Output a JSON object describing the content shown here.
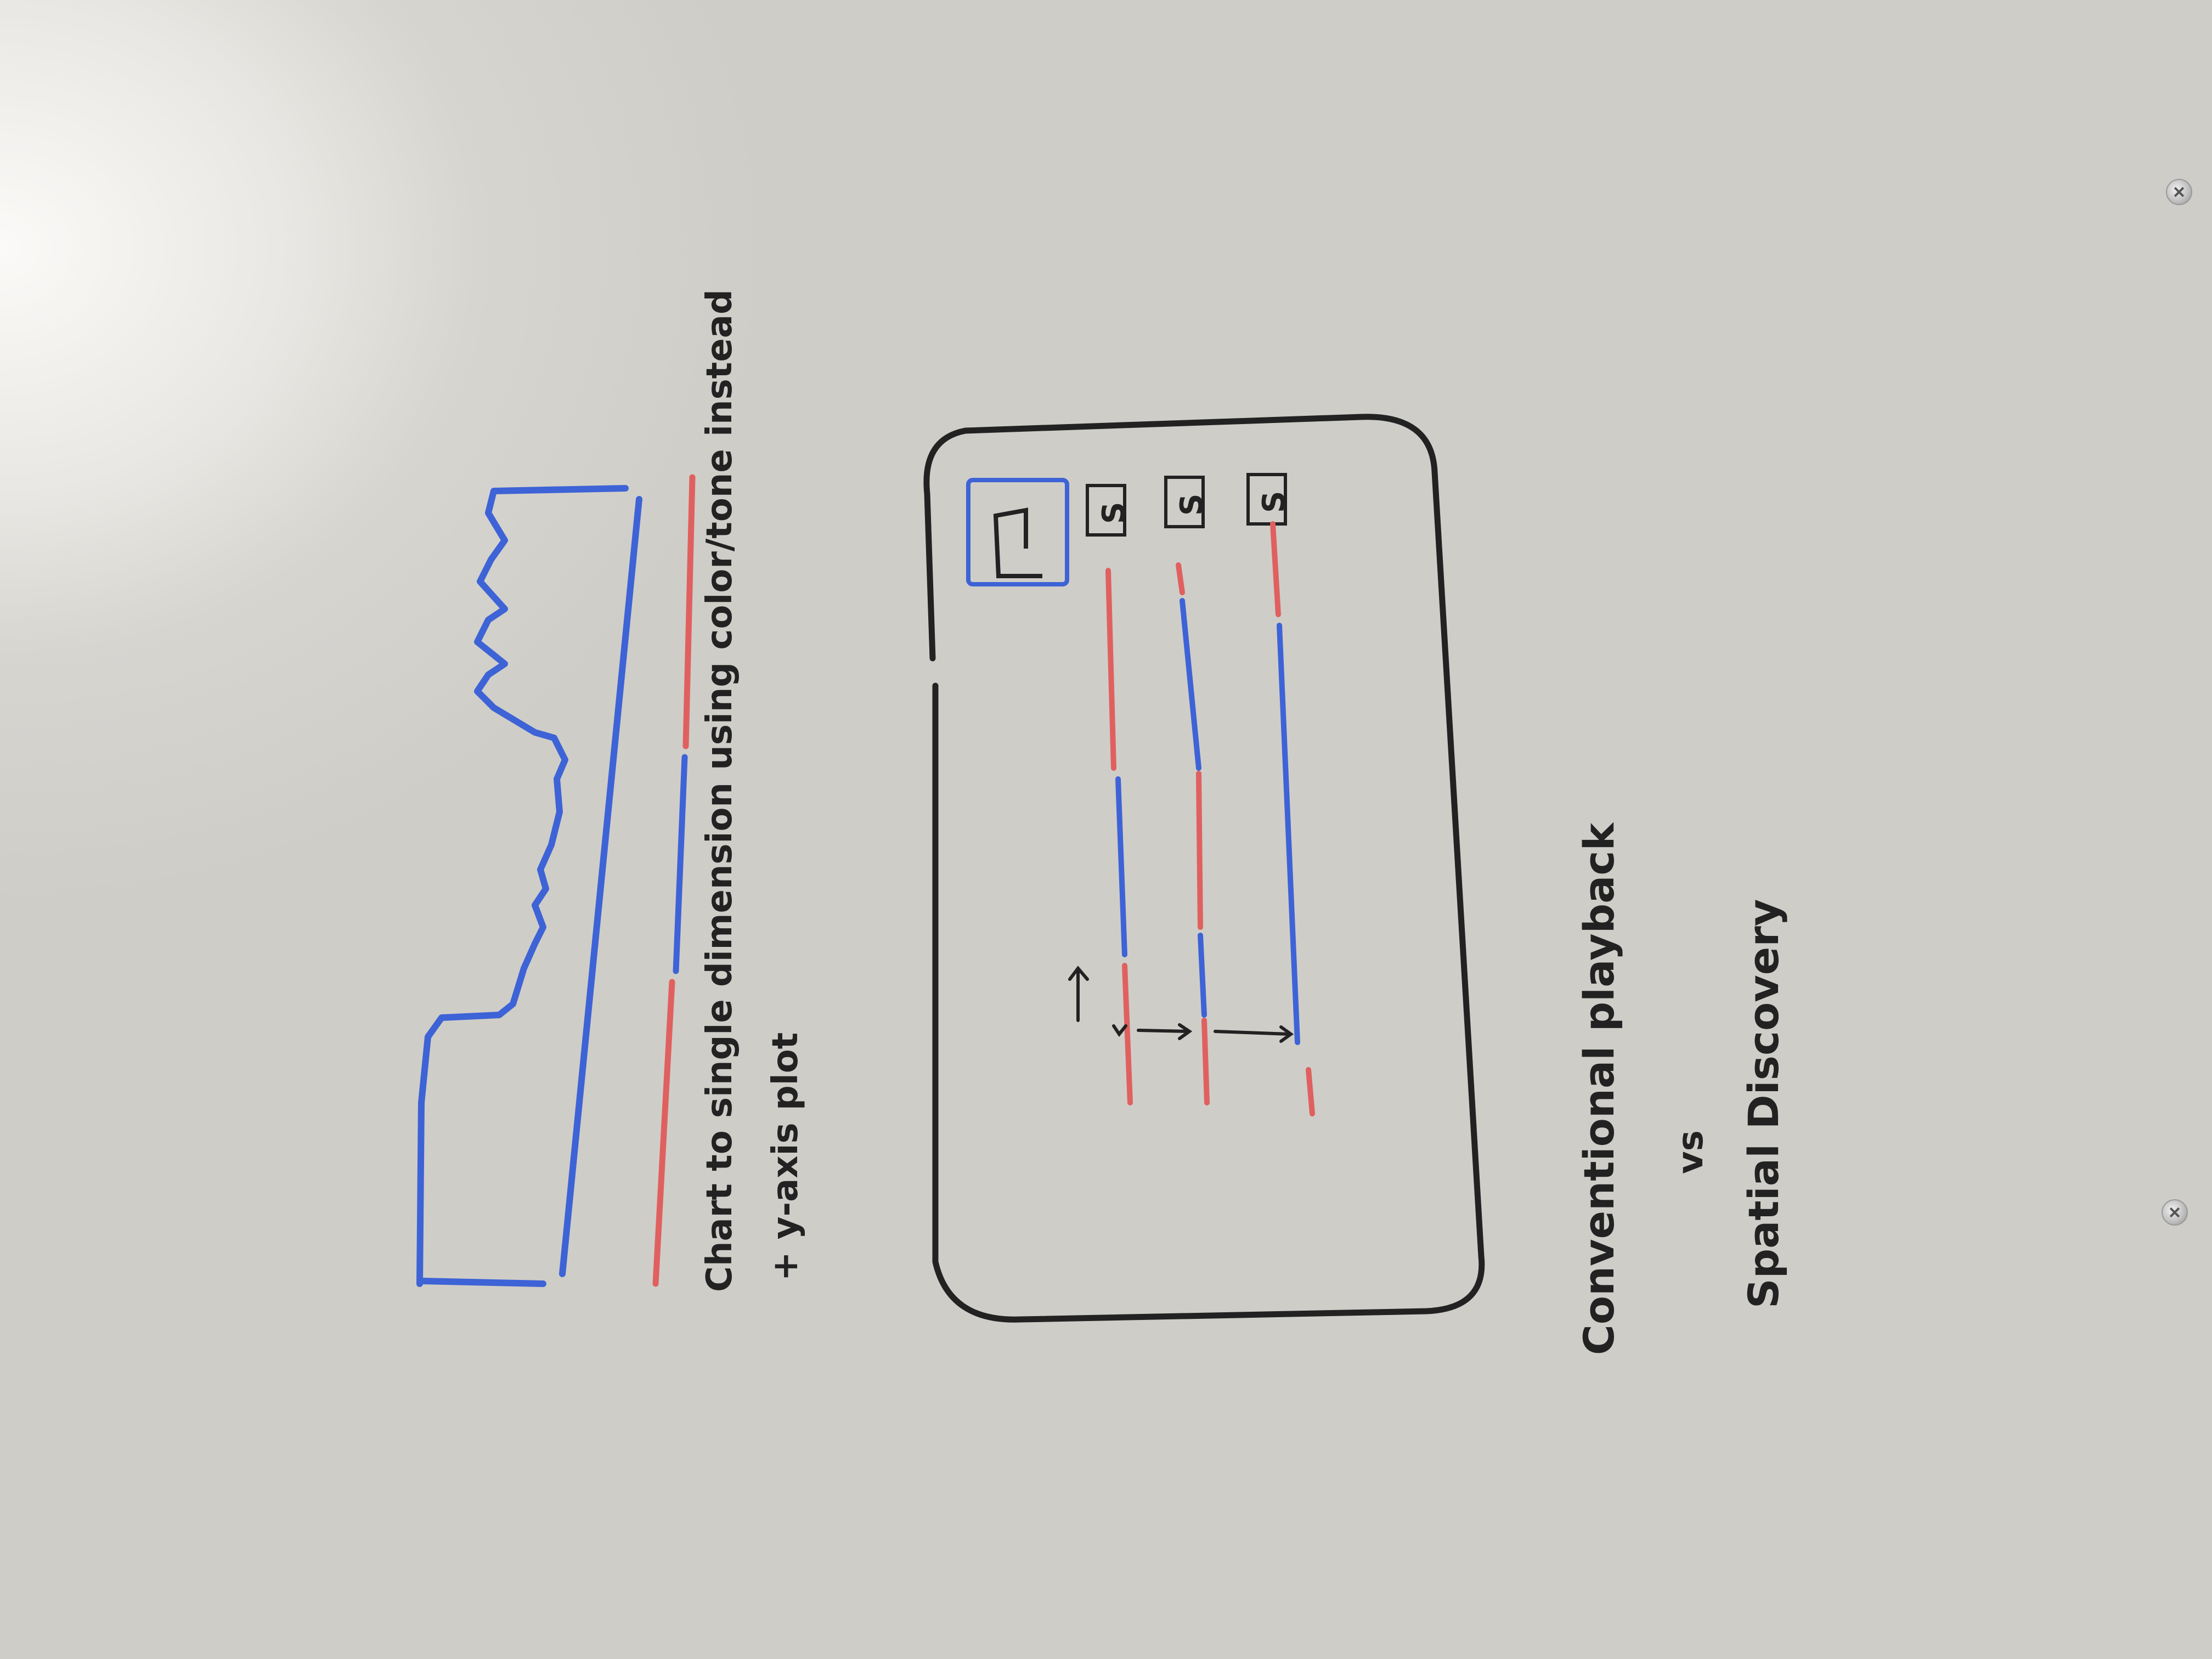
{
  "sketch": {
    "note_line1": "Chart to single dimension using color/tone instead",
    "note_line2": "+ y-axis plot",
    "tile_label": "S",
    "caption_line1": "Conventional playback",
    "caption_line2": "vs",
    "caption_line3": "Spatial Discovery"
  },
  "colors": {
    "blue_marker": "#3d63d6",
    "red_marker": "#e06060",
    "black_marker": "#222222",
    "board": "#d8d6d1"
  }
}
